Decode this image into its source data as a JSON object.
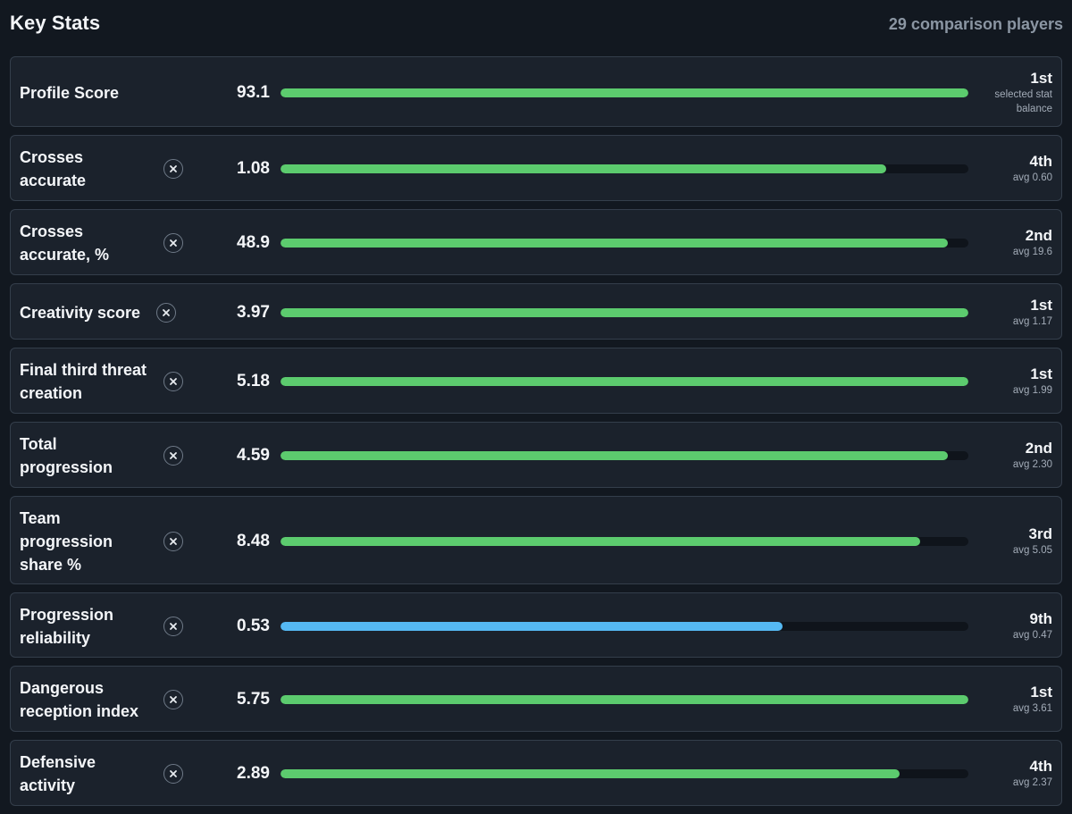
{
  "header": {
    "title": "Key Stats",
    "comparison_count": "29 comparison players"
  },
  "colors": {
    "background": "#121820",
    "card": "#1b222c",
    "bar_green": "#5ccb6e",
    "bar_blue": "#55b9f3",
    "track": "#0f141b"
  },
  "stats": [
    {
      "label": "Profile Score",
      "value": "93.1",
      "fraction": 1.0,
      "rank": "1st",
      "sub": "selected stat balance",
      "color": "green",
      "removable": false
    },
    {
      "label": "Crosses accurate",
      "value": "1.08",
      "fraction": 0.88,
      "rank": "4th",
      "sub": "avg 0.60",
      "color": "green",
      "removable": true
    },
    {
      "label": "Crosses accurate, %",
      "value": "48.9",
      "fraction": 0.97,
      "rank": "2nd",
      "sub": "avg 19.6",
      "color": "green",
      "removable": true
    },
    {
      "label": "Creativity score",
      "value": "3.97",
      "fraction": 1.0,
      "rank": "1st",
      "sub": "avg 1.17",
      "color": "green",
      "removable": true
    },
    {
      "label": "Final third threat creation",
      "value": "5.18",
      "fraction": 1.0,
      "rank": "1st",
      "sub": "avg 1.99",
      "color": "green",
      "removable": true
    },
    {
      "label": "Total progression",
      "value": "4.59",
      "fraction": 0.97,
      "rank": "2nd",
      "sub": "avg 2.30",
      "color": "green",
      "removable": true
    },
    {
      "label": "Team progression share %",
      "value": "8.48",
      "fraction": 0.93,
      "rank": "3rd",
      "sub": "avg 5.05",
      "color": "green",
      "removable": true
    },
    {
      "label": "Progression reliability",
      "value": "0.53",
      "fraction": 0.73,
      "rank": "9th",
      "sub": "avg 0.47",
      "color": "blue",
      "removable": true
    },
    {
      "label": "Dangerous reception index",
      "value": "5.75",
      "fraction": 1.0,
      "rank": "1st",
      "sub": "avg 3.61",
      "color": "green",
      "removable": true
    },
    {
      "label": "Defensive activity",
      "value": "2.89",
      "fraction": 0.9,
      "rank": "4th",
      "sub": "avg 2.37",
      "color": "green",
      "removable": true
    }
  ]
}
